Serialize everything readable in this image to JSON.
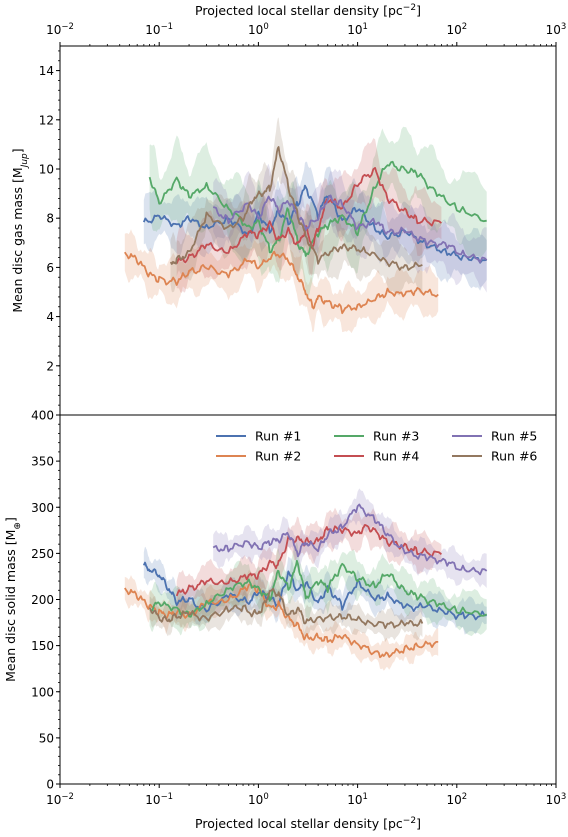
{
  "chart_data": {
    "type": "line",
    "x_scale": "log",
    "xlim": [
      0.01,
      1000
    ],
    "xlabel_top": "Projected local stellar density [pc",
    "xlabel_top_sup": "−2",
    "xlabel_top_end": "]",
    "xlabel_bottom": "Projected local stellar density [pc",
    "xlabel_bottom_sup": "−2",
    "xlabel_bottom_end": "]",
    "x_ticks": [
      {
        "value": 0.01,
        "base": "10",
        "exp": "−2"
      },
      {
        "value": 0.1,
        "base": "10",
        "exp": "−1"
      },
      {
        "value": 1,
        "base": "10",
        "exp": "0"
      },
      {
        "value": 10,
        "base": "10",
        "exp": "1"
      },
      {
        "value": 100,
        "base": "10",
        "exp": "2"
      },
      {
        "value": 1000,
        "base": "10",
        "exp": "3"
      }
    ],
    "legend": {
      "placement": "top-right",
      "columns": 3
    },
    "series_styles": [
      {
        "name": "Run #1",
        "color": "#4c72b0"
      },
      {
        "name": "Run #2",
        "color": "#dd8452"
      },
      {
        "name": "Run #3",
        "color": "#55a868"
      },
      {
        "name": "Run #4",
        "color": "#c44e52"
      },
      {
        "name": "Run #5",
        "color": "#8172b3"
      },
      {
        "name": "Run #6",
        "color": "#937860"
      }
    ],
    "panels": [
      {
        "id": "gas",
        "ylabel": "Mean disc gas mass [M",
        "ylabel_sub": "Jup",
        "ylabel_end": "]",
        "ylim": [
          0,
          15
        ],
        "y_ticks": [
          "2",
          "4",
          "6",
          "8",
          "10",
          "12",
          "14"
        ],
        "y_tick_values": [
          2,
          4,
          6,
          8,
          10,
          12,
          14
        ],
        "series": [
          {
            "name": "Run #1",
            "band": 0.9,
            "x": [
              0.07,
              0.1,
              0.15,
              0.2,
              0.3,
              0.5,
              0.8,
              1.0,
              1.3,
              1.6,
              2.0,
              2.5,
              3.0,
              4.0,
              5.0,
              7.0,
              10,
              15,
              20,
              30,
              50,
              80,
              120,
              200
            ],
            "y": [
              7.8,
              8.1,
              7.7,
              8.0,
              7.6,
              8.0,
              7.3,
              8.2,
              7.5,
              8.3,
              7.8,
              8.6,
              9.3,
              8.1,
              9.0,
              7.9,
              8.4,
              7.6,
              7.2,
              7.5,
              6.9,
              6.6,
              6.4,
              6.3
            ]
          },
          {
            "name": "Run #2",
            "band": 0.75,
            "x": [
              0.045,
              0.06,
              0.08,
              0.1,
              0.15,
              0.2,
              0.3,
              0.5,
              0.8,
              1.0,
              1.5,
              2.0,
              2.5,
              3.0,
              3.5,
              4.0,
              5.0,
              7.0,
              10,
              15,
              20,
              30,
              40,
              65
            ],
            "y": [
              6.6,
              6.3,
              5.7,
              5.5,
              5.4,
              5.8,
              6.0,
              5.7,
              6.3,
              6.0,
              6.6,
              6.3,
              5.6,
              5.0,
              4.4,
              4.8,
              4.6,
              4.3,
              4.4,
              4.7,
              5.0,
              4.9,
              5.1,
              4.9
            ]
          },
          {
            "name": "Run #3",
            "band": 1.3,
            "x": [
              0.08,
              0.1,
              0.15,
              0.2,
              0.3,
              0.5,
              0.8,
              1.0,
              1.3,
              1.6,
              2.0,
              2.5,
              3.0,
              4.0,
              5.0,
              7.0,
              10,
              15,
              20,
              30,
              40,
              60,
              100,
              200
            ],
            "y": [
              9.7,
              8.6,
              9.6,
              8.9,
              9.3,
              8.4,
              7.6,
              7.9,
              6.7,
              7.1,
              8.4,
              7.0,
              6.5,
              7.4,
              7.7,
              8.1,
              7.4,
              9.3,
              10.2,
              10.0,
              9.8,
              9.1,
              8.4,
              7.9
            ]
          },
          {
            "name": "Run #4",
            "band": 1.0,
            "x": [
              0.15,
              0.2,
              0.3,
              0.5,
              0.8,
              1.0,
              1.3,
              1.6,
              2.0,
              2.5,
              3.0,
              3.5,
              4.0,
              5.0,
              7.0,
              10,
              15,
              20,
              30,
              40,
              70
            ],
            "y": [
              6.2,
              6.4,
              6.9,
              6.6,
              7.4,
              7.3,
              7.8,
              7.1,
              7.5,
              6.9,
              7.6,
              6.8,
              7.6,
              8.8,
              8.4,
              9.4,
              10.0,
              8.8,
              8.3,
              7.9,
              7.8
            ]
          },
          {
            "name": "Run #5",
            "band": 1.0,
            "x": [
              0.35,
              0.5,
              0.8,
              1.0,
              1.3,
              1.6,
              2.0,
              2.5,
              3.0,
              4.0,
              5.0,
              7.0,
              10,
              15,
              20,
              30,
              50,
              80,
              120,
              200
            ],
            "y": [
              8.4,
              7.9,
              8.6,
              8.0,
              8.9,
              8.3,
              8.7,
              8.1,
              7.6,
              8.0,
              8.8,
              8.6,
              7.6,
              7.9,
              7.4,
              7.5,
              7.0,
              6.9,
              6.5,
              6.3
            ]
          },
          {
            "name": "Run #6",
            "band": 0.9,
            "x": [
              0.13,
              0.15,
              0.2,
              0.3,
              0.5,
              0.7,
              0.9,
              1.1,
              1.3,
              1.6,
              2.0,
              2.5,
              3.0,
              4.0,
              6.0,
              8.0,
              12,
              20,
              30,
              45
            ],
            "y": [
              6.2,
              6.3,
              6.6,
              8.1,
              7.6,
              8.0,
              8.8,
              9.0,
              9.2,
              10.9,
              9.3,
              8.1,
              7.3,
              6.3,
              6.8,
              6.8,
              6.7,
              6.2,
              6.0,
              6.1
            ]
          }
        ]
      },
      {
        "id": "solid",
        "ylabel": "Mean disc solid mass [M",
        "ylabel_sub": "⊕",
        "ylabel_end": "]",
        "ylim": [
          0,
          400
        ],
        "y_ticks": [
          "0",
          "50",
          "100",
          "150",
          "200",
          "250",
          "300",
          "350",
          "400"
        ],
        "y_tick_values": [
          0,
          50,
          100,
          150,
          200,
          250,
          300,
          350,
          400
        ],
        "series": [
          {
            "name": "Run #1",
            "band": 14,
            "x": [
              0.07,
              0.08,
              0.1,
              0.12,
              0.15,
              0.2,
              0.3,
              0.5,
              0.8,
              1.0,
              1.3,
              1.6,
              2.0,
              2.5,
              3.0,
              4.0,
              5.0,
              7.0,
              10,
              15,
              20,
              30,
              50,
              80,
              120,
              200
            ],
            "y": [
              236,
              232,
              226,
              214,
              197,
              200,
              188,
              205,
              196,
              208,
              201,
              194,
              229,
              209,
              218,
              196,
              214,
              193,
              219,
              200,
              204,
              192,
              192,
              185,
              182,
              183
            ]
          },
          {
            "name": "Run #2",
            "band": 12,
            "x": [
              0.045,
              0.06,
              0.08,
              0.1,
              0.12,
              0.15,
              0.2,
              0.3,
              0.5,
              0.8,
              1.0,
              1.3,
              1.6,
              2.0,
              2.5,
              3.0,
              4.0,
              5.0,
              7.0,
              10,
              15,
              20,
              30,
              40,
              65
            ],
            "y": [
              212,
              204,
              192,
              186,
              182,
              186,
              183,
              196,
              199,
              214,
              211,
              191,
              194,
              180,
              172,
              158,
              160,
              156,
              160,
              152,
              142,
              140,
              146,
              150,
              154
            ]
          },
          {
            "name": "Run #3",
            "band": 18,
            "x": [
              0.08,
              0.1,
              0.15,
              0.2,
              0.3,
              0.5,
              0.8,
              1.0,
              1.3,
              1.6,
              2.0,
              2.5,
              3.0,
              4.0,
              5.0,
              7.0,
              10,
              15,
              20,
              30,
              40,
              60,
              100,
              200
            ],
            "y": [
              190,
              196,
              190,
              183,
              195,
              212,
              219,
              212,
              201,
              231,
              212,
              241,
              202,
              220,
              212,
              238,
              222,
              215,
              228,
              210,
              203,
              197,
              188,
              184
            ]
          },
          {
            "name": "Run #4",
            "band": 16,
            "x": [
              0.15,
              0.2,
              0.3,
              0.5,
              0.8,
              1.0,
              1.3,
              1.6,
              2.0,
              2.5,
              3.0,
              4.0,
              5.0,
              7.0,
              10,
              12,
              15,
              20,
              30,
              40,
              70
            ],
            "y": [
              205,
              212,
              219,
              218,
              225,
              226,
              240,
              238,
              265,
              266,
              262,
              264,
              277,
              275,
              272,
              280,
              275,
              262,
              258,
              252,
              249
            ]
          },
          {
            "name": "Run #5",
            "band": 14,
            "x": [
              0.35,
              0.5,
              0.8,
              1.0,
              1.3,
              1.6,
              2.0,
              2.5,
              3.0,
              4.0,
              5.0,
              7.0,
              10,
              15,
              20,
              30,
              50,
              80,
              120,
              200
            ],
            "y": [
              255,
              255,
              262,
              256,
              262,
              264,
              272,
              249,
              262,
              254,
              270,
              279,
              301,
              287,
              270,
              252,
              245,
              240,
              232,
              231
            ]
          },
          {
            "name": "Run #6",
            "band": 12,
            "x": [
              0.08,
              0.1,
              0.12,
              0.15,
              0.2,
              0.3,
              0.5,
              0.7,
              0.9,
              1.1,
              1.3,
              1.6,
              2.0,
              2.5,
              3.0,
              4.0,
              6.0,
              8.0,
              12,
              20,
              30,
              45
            ],
            "y": [
              192,
              180,
              178,
              182,
              185,
              179,
              190,
              191,
              184,
              190,
              209,
              206,
              182,
              190,
              175,
              180,
              180,
              182,
              175,
              172,
              174,
              174
            ]
          }
        ]
      }
    ]
  }
}
